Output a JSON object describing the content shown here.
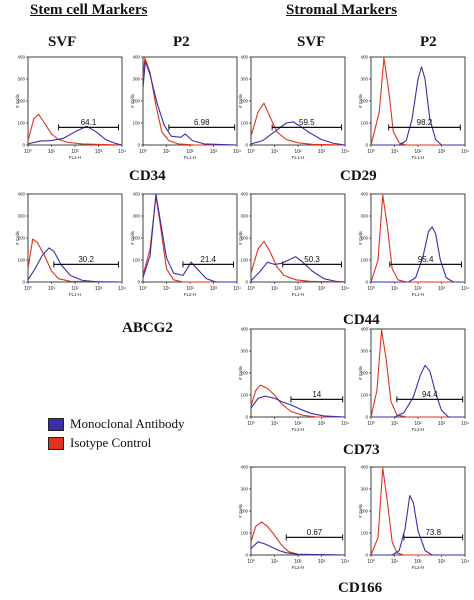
{
  "headers": {
    "stem_title": "Stem cell Markers",
    "stromal_title": "Stromal Markers",
    "col_svf_1": "SVF",
    "col_p2_1": "P2",
    "col_svf_2": "SVF",
    "col_p2_2": "P2"
  },
  "markers": {
    "cd34": "CD34",
    "cd29": "CD29",
    "abcg2": "ABCG2",
    "cd44": "CD44",
    "cd73": "CD73",
    "cd166": "CD166"
  },
  "legend": {
    "monoclonal": "Monoclonal Antibody",
    "isotype": "Isotype Control"
  },
  "colors": {
    "monoclonal": "#3b2ea8",
    "isotype": "#e0321e"
  },
  "chart_data": [
    {
      "type": "line",
      "marker": "CD34",
      "sample": "SVF",
      "gate_label": "64.1",
      "ylabel": "# Cells",
      "xlabel": "FL1-H",
      "ylim": [
        0,
        400
      ],
      "y_ticks": [
        "0",
        "100",
        "200",
        "300",
        "400"
      ],
      "x_ticks": [
        "10⁰",
        "10¹",
        "10²",
        "10³",
        "10⁴"
      ],
      "gate": [
        1.3,
        3.85
      ],
      "isotype": [
        [
          0,
          20
        ],
        [
          0.25,
          120
        ],
        [
          0.45,
          140
        ],
        [
          0.7,
          100
        ],
        [
          1.0,
          50
        ],
        [
          1.3,
          25
        ],
        [
          1.7,
          12
        ],
        [
          2.3,
          5
        ],
        [
          4,
          0
        ]
      ],
      "monoclonal": [
        [
          0,
          5
        ],
        [
          0.5,
          18
        ],
        [
          1.0,
          20
        ],
        [
          1.5,
          30
        ],
        [
          2.0,
          60
        ],
        [
          2.5,
          85
        ],
        [
          2.9,
          60
        ],
        [
          3.3,
          25
        ],
        [
          3.7,
          8
        ],
        [
          4,
          0
        ]
      ]
    },
    {
      "type": "line",
      "marker": "CD34",
      "sample": "P2",
      "gate_label": "6.98",
      "ylabel": "# Cells",
      "xlabel": "FL1-H",
      "ylim": [
        0,
        400
      ],
      "y_ticks": [
        "0",
        "100",
        "200",
        "300",
        "400"
      ],
      "x_ticks": [
        "10⁰",
        "10¹",
        "10²",
        "10³",
        "10⁴"
      ],
      "gate": [
        1.1,
        3.9
      ],
      "isotype": [
        [
          0,
          300
        ],
        [
          0.08,
          395
        ],
        [
          0.3,
          330
        ],
        [
          0.55,
          180
        ],
        [
          0.8,
          60
        ],
        [
          1.1,
          20
        ],
        [
          1.5,
          5
        ],
        [
          2.2,
          0
        ],
        [
          4,
          0
        ]
      ],
      "monoclonal": [
        [
          0,
          260
        ],
        [
          0.1,
          380
        ],
        [
          0.3,
          320
        ],
        [
          0.6,
          190
        ],
        [
          0.9,
          90
        ],
        [
          1.2,
          40
        ],
        [
          1.6,
          35
        ],
        [
          1.8,
          50
        ],
        [
          2.1,
          20
        ],
        [
          2.6,
          5
        ],
        [
          4,
          0
        ]
      ]
    },
    {
      "type": "line",
      "marker": "CD29",
      "sample": "SVF",
      "gate_label": "59.5",
      "ylabel": "# Cells",
      "xlabel": "FL1-H",
      "ylim": [
        0,
        400
      ],
      "y_ticks": [
        "0",
        "100",
        "200",
        "300",
        "400"
      ],
      "x_ticks": [
        "10⁰",
        "10¹",
        "10²",
        "10³",
        "10⁴"
      ],
      "gate": [
        0.9,
        3.85
      ],
      "isotype": [
        [
          0,
          40
        ],
        [
          0.3,
          150
        ],
        [
          0.55,
          190
        ],
        [
          0.8,
          130
        ],
        [
          1.1,
          60
        ],
        [
          1.5,
          25
        ],
        [
          2.0,
          10
        ],
        [
          2.6,
          3
        ],
        [
          4,
          0
        ]
      ],
      "monoclonal": [
        [
          0,
          5
        ],
        [
          0.5,
          20
        ],
        [
          1.0,
          60
        ],
        [
          1.5,
          100
        ],
        [
          1.8,
          105
        ],
        [
          2.1,
          85
        ],
        [
          2.5,
          55
        ],
        [
          3.0,
          25
        ],
        [
          3.5,
          8
        ],
        [
          4,
          0
        ]
      ]
    },
    {
      "type": "line",
      "marker": "CD29",
      "sample": "P2",
      "gate_label": "98.2",
      "ylabel": "# Cells",
      "xlabel": "FL1-H",
      "ylim": [
        0,
        400
      ],
      "y_ticks": [
        "0",
        "100",
        "200",
        "300",
        "400"
      ],
      "x_ticks": [
        "10⁰",
        "10¹",
        "10²",
        "10³",
        "10⁴"
      ],
      "gate": [
        0.75,
        3.8
      ],
      "isotype": [
        [
          0,
          0
        ],
        [
          0.35,
          150
        ],
        [
          0.55,
          395
        ],
        [
          0.75,
          250
        ],
        [
          0.95,
          60
        ],
        [
          1.2,
          10
        ],
        [
          1.5,
          0
        ],
        [
          4,
          0
        ]
      ],
      "monoclonal": [
        [
          0,
          0
        ],
        [
          1.2,
          0
        ],
        [
          1.5,
          20
        ],
        [
          1.75,
          120
        ],
        [
          2.0,
          300
        ],
        [
          2.15,
          355
        ],
        [
          2.3,
          300
        ],
        [
          2.5,
          120
        ],
        [
          2.75,
          25
        ],
        [
          3.0,
          0
        ],
        [
          4,
          0
        ]
      ]
    },
    {
      "type": "line",
      "marker": "ABCG2",
      "sample": "SVF",
      "gate_label": "30.2",
      "ylabel": "# Cells",
      "xlabel": "FL1-H",
      "ylim": [
        0,
        400
      ],
      "y_ticks": [
        "0",
        "100",
        "200",
        "300",
        "400"
      ],
      "x_ticks": [
        "10⁰",
        "10¹",
        "10²",
        "10³",
        "10⁴"
      ],
      "gate": [
        1.1,
        3.85
      ],
      "isotype": [
        [
          0,
          60
        ],
        [
          0.2,
          195
        ],
        [
          0.4,
          180
        ],
        [
          0.7,
          120
        ],
        [
          1.0,
          50
        ],
        [
          1.3,
          15
        ],
        [
          1.8,
          3
        ],
        [
          4,
          0
        ]
      ],
      "monoclonal": [
        [
          0,
          10
        ],
        [
          0.3,
          60
        ],
        [
          0.6,
          120
        ],
        [
          0.9,
          155
        ],
        [
          1.1,
          140
        ],
        [
          1.4,
          80
        ],
        [
          1.8,
          30
        ],
        [
          2.3,
          8
        ],
        [
          3,
          0
        ],
        [
          4,
          0
        ]
      ]
    },
    {
      "type": "line",
      "marker": "ABCG2",
      "sample": "P2",
      "gate_label": "21.4",
      "ylabel": "# Cells",
      "xlabel": "FL2-H",
      "ylim": [
        0,
        400
      ],
      "y_ticks": [
        "0",
        "100",
        "200",
        "300",
        "400"
      ],
      "x_ticks": [
        "10⁰",
        "10¹",
        "10²",
        "10³",
        "10⁴"
      ],
      "gate": [
        1.7,
        3.85
      ],
      "isotype": [
        [
          0,
          30
        ],
        [
          0.3,
          150
        ],
        [
          0.55,
          390
        ],
        [
          0.75,
          250
        ],
        [
          1.0,
          60
        ],
        [
          1.3,
          10
        ],
        [
          1.7,
          0
        ],
        [
          4,
          0
        ]
      ],
      "monoclonal": [
        [
          0,
          20
        ],
        [
          0.3,
          120
        ],
        [
          0.55,
          400
        ],
        [
          0.75,
          270
        ],
        [
          1.0,
          110
        ],
        [
          1.3,
          40
        ],
        [
          1.7,
          30
        ],
        [
          2.05,
          90
        ],
        [
          2.3,
          60
        ],
        [
          2.7,
          15
        ],
        [
          3.1,
          0
        ],
        [
          4,
          0
        ]
      ]
    },
    {
      "type": "line",
      "marker": "CD44",
      "sample": "SVF",
      "gate_label": "50.3",
      "ylabel": "# Cells",
      "xlabel": "FL1-H",
      "ylim": [
        0,
        400
      ],
      "y_ticks": [
        "0",
        "100",
        "200",
        "300",
        "400"
      ],
      "x_ticks": [
        "10⁰",
        "10¹",
        "10²",
        "10³",
        "10⁴"
      ],
      "gate": [
        1.35,
        3.85
      ],
      "isotype": [
        [
          0,
          40
        ],
        [
          0.3,
          150
        ],
        [
          0.55,
          185
        ],
        [
          0.8,
          140
        ],
        [
          1.1,
          70
        ],
        [
          1.4,
          30
        ],
        [
          1.9,
          10
        ],
        [
          2.5,
          3
        ],
        [
          4,
          0
        ]
      ],
      "monoclonal": [
        [
          0,
          5
        ],
        [
          0.4,
          50
        ],
        [
          0.7,
          90
        ],
        [
          1.0,
          80
        ],
        [
          1.3,
          85
        ],
        [
          1.6,
          100
        ],
        [
          1.9,
          115
        ],
        [
          2.2,
          90
        ],
        [
          2.6,
          50
        ],
        [
          3.1,
          15
        ],
        [
          3.6,
          3
        ],
        [
          4,
          0
        ]
      ]
    },
    {
      "type": "line",
      "marker": "CD44",
      "sample": "P2",
      "gate_label": "95.4",
      "ylabel": "# Cells",
      "xlabel": "FL1-H",
      "ylim": [
        0,
        400
      ],
      "y_ticks": [
        "0",
        "100",
        "200",
        "300",
        "400"
      ],
      "x_ticks": [
        "10⁰",
        "10¹",
        "10²",
        "10³",
        "10⁴"
      ],
      "gate": [
        0.8,
        3.85
      ],
      "isotype": [
        [
          0,
          0
        ],
        [
          0.3,
          100
        ],
        [
          0.5,
          395
        ],
        [
          0.7,
          250
        ],
        [
          0.9,
          60
        ],
        [
          1.15,
          10
        ],
        [
          1.5,
          0
        ],
        [
          4,
          0
        ]
      ],
      "monoclonal": [
        [
          0,
          0
        ],
        [
          1.6,
          0
        ],
        [
          1.9,
          20
        ],
        [
          2.2,
          110
        ],
        [
          2.45,
          230
        ],
        [
          2.6,
          250
        ],
        [
          2.75,
          220
        ],
        [
          2.95,
          100
        ],
        [
          3.2,
          20
        ],
        [
          3.5,
          0
        ],
        [
          4,
          0
        ]
      ]
    },
    {
      "type": "line",
      "marker": "CD73",
      "sample": "SVF",
      "gate_label": "14",
      "ylabel": "# Cells",
      "xlabel": "FL2-H",
      "ylim": [
        0,
        400
      ],
      "y_ticks": [
        "0",
        "100",
        "200",
        "300",
        "400"
      ],
      "x_ticks": [
        "10⁰",
        "10¹",
        "10²",
        "10³",
        "10⁴"
      ],
      "gate": [
        1.7,
        3.9
      ],
      "isotype": [
        [
          0,
          50
        ],
        [
          0.2,
          120
        ],
        [
          0.4,
          145
        ],
        [
          0.7,
          130
        ],
        [
          1.0,
          100
        ],
        [
          1.3,
          60
        ],
        [
          1.7,
          25
        ],
        [
          2.2,
          8
        ],
        [
          2.8,
          0
        ],
        [
          4,
          0
        ]
      ],
      "monoclonal": [
        [
          0,
          40
        ],
        [
          0.3,
          85
        ],
        [
          0.6,
          95
        ],
        [
          1.0,
          85
        ],
        [
          1.3,
          70
        ],
        [
          1.7,
          55
        ],
        [
          2.1,
          35
        ],
        [
          2.6,
          15
        ],
        [
          3.1,
          5
        ],
        [
          4,
          0
        ]
      ]
    },
    {
      "type": "line",
      "marker": "CD73",
      "sample": "P2",
      "gate_label": "94.4",
      "ylabel": "# Cells",
      "xlabel": "FL2-H",
      "ylim": [
        0,
        400
      ],
      "y_ticks": [
        "0",
        "100",
        "200",
        "300",
        "400"
      ],
      "x_ticks": [
        "10⁰",
        "10¹",
        "10²",
        "10³",
        "10⁴"
      ],
      "gate": [
        1.1,
        3.9
      ],
      "isotype": [
        [
          0,
          0
        ],
        [
          0.25,
          120
        ],
        [
          0.45,
          395
        ],
        [
          0.65,
          260
        ],
        [
          0.85,
          70
        ],
        [
          1.1,
          10
        ],
        [
          1.5,
          0
        ],
        [
          4,
          0
        ]
      ],
      "monoclonal": [
        [
          0,
          0
        ],
        [
          1.0,
          0
        ],
        [
          1.4,
          20
        ],
        [
          1.8,
          90
        ],
        [
          2.1,
          190
        ],
        [
          2.3,
          235
        ],
        [
          2.5,
          210
        ],
        [
          2.75,
          110
        ],
        [
          3.0,
          30
        ],
        [
          3.3,
          0
        ],
        [
          4,
          0
        ]
      ]
    },
    {
      "type": "line",
      "marker": "CD166",
      "sample": "SVF",
      "gate_label": "0.67",
      "ylabel": "# Cells",
      "xlabel": "FL2-H",
      "ylim": [
        0,
        400
      ],
      "y_ticks": [
        "0",
        "100",
        "200",
        "300",
        "400"
      ],
      "x_ticks": [
        "10⁰",
        "10¹",
        "10²",
        "10³",
        "10⁴"
      ],
      "gate": [
        1.5,
        3.9
      ],
      "isotype": [
        [
          0,
          60
        ],
        [
          0.2,
          130
        ],
        [
          0.45,
          150
        ],
        [
          0.7,
          130
        ],
        [
          1.0,
          90
        ],
        [
          1.3,
          45
        ],
        [
          1.6,
          15
        ],
        [
          2.0,
          3
        ],
        [
          4,
          0
        ]
      ],
      "monoclonal": [
        [
          0,
          30
        ],
        [
          0.3,
          60
        ],
        [
          0.6,
          50
        ],
        [
          0.9,
          35
        ],
        [
          1.2,
          20
        ],
        [
          1.5,
          10
        ],
        [
          2.0,
          3
        ],
        [
          4,
          0
        ]
      ]
    },
    {
      "type": "line",
      "marker": "CD166",
      "sample": "P2",
      "gate_label": "73.8",
      "ylabel": "# Cells",
      "xlabel": "FL2-H",
      "ylim": [
        0,
        400
      ],
      "y_ticks": [
        "0",
        "100",
        "200",
        "300",
        "400"
      ],
      "x_ticks": [
        "10⁰",
        "10¹",
        "10²",
        "10³",
        "10⁴"
      ],
      "gate": [
        1.4,
        3.9
      ],
      "isotype": [
        [
          0,
          0
        ],
        [
          0.3,
          80
        ],
        [
          0.5,
          395
        ],
        [
          0.7,
          240
        ],
        [
          0.9,
          60
        ],
        [
          1.1,
          10
        ],
        [
          1.4,
          0
        ],
        [
          4,
          0
        ]
      ],
      "monoclonal": [
        [
          0,
          0
        ],
        [
          0.9,
          0
        ],
        [
          1.2,
          20
        ],
        [
          1.45,
          120
        ],
        [
          1.65,
          270
        ],
        [
          1.8,
          240
        ],
        [
          2.0,
          110
        ],
        [
          2.3,
          20
        ],
        [
          2.6,
          0
        ],
        [
          4,
          0
        ]
      ]
    }
  ]
}
